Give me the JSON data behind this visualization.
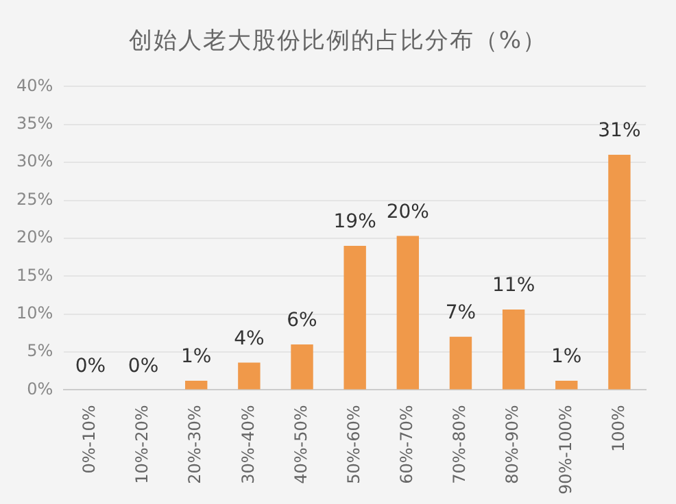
{
  "chart_data": {
    "type": "bar",
    "title": "创始人老大股份比例的占比分布（%）",
    "categories": [
      "0%-10%",
      "10%-20%",
      "20%-30%",
      "30%-40%",
      "40%-50%",
      "50%-60%",
      "60%-70%",
      "70%-80%",
      "80%-90%",
      "90%-100%",
      "100%"
    ],
    "values": [
      0,
      0,
      1.2,
      3.6,
      6,
      19,
      20.3,
      7,
      10.6,
      1.2,
      31
    ],
    "value_labels": [
      "0%",
      "0%",
      "1%",
      "4%",
      "6%",
      "19%",
      "20%",
      "7%",
      "11%",
      "1%",
      "31%"
    ],
    "color": "#f0994a",
    "ylim": [
      0,
      40
    ],
    "yticks": [
      {
        "value": 0,
        "label": "0%"
      },
      {
        "value": 5,
        "label": "5%"
      },
      {
        "value": 10,
        "label": "10%"
      },
      {
        "value": 15,
        "label": "15%"
      },
      {
        "value": 20,
        "label": "20%"
      },
      {
        "value": 25,
        "label": "25%"
      },
      {
        "value": 30,
        "label": "30%"
      },
      {
        "value": 35,
        "label": "35%"
      },
      {
        "value": 40,
        "label": "40%"
      }
    ],
    "grid": "y",
    "legend": false
  }
}
